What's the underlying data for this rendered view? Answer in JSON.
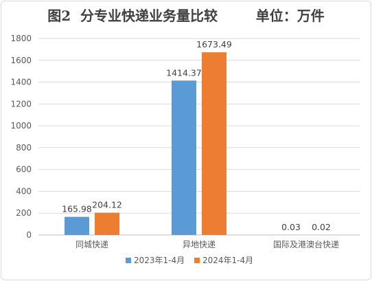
{
  "chart_data": {
    "type": "bar",
    "title": "图2  分专业快递业务量比较        单位：万件",
    "categories": [
      "同城快递",
      "异地快递",
      "国际及港澳台快递"
    ],
    "series": [
      {
        "name": "2023年1-4月",
        "color": "#5b9bd5",
        "values": [
          165.98,
          1414.37,
          0.03
        ],
        "labels": [
          "165.98",
          "1414.37",
          "0.03"
        ]
      },
      {
        "name": "2024年1-4月",
        "color": "#ed7d31",
        "values": [
          204.12,
          1673.49,
          0.02
        ],
        "labels": [
          "204.12",
          "1673.49",
          "0.02"
        ]
      }
    ],
    "ylim": [
      0,
      1800
    ],
    "yticks": [
      "0",
      "200",
      "400",
      "600",
      "800",
      "1000",
      "1200",
      "1400",
      "1600",
      "1800"
    ],
    "grid": true,
    "legend_position": "bottom"
  }
}
